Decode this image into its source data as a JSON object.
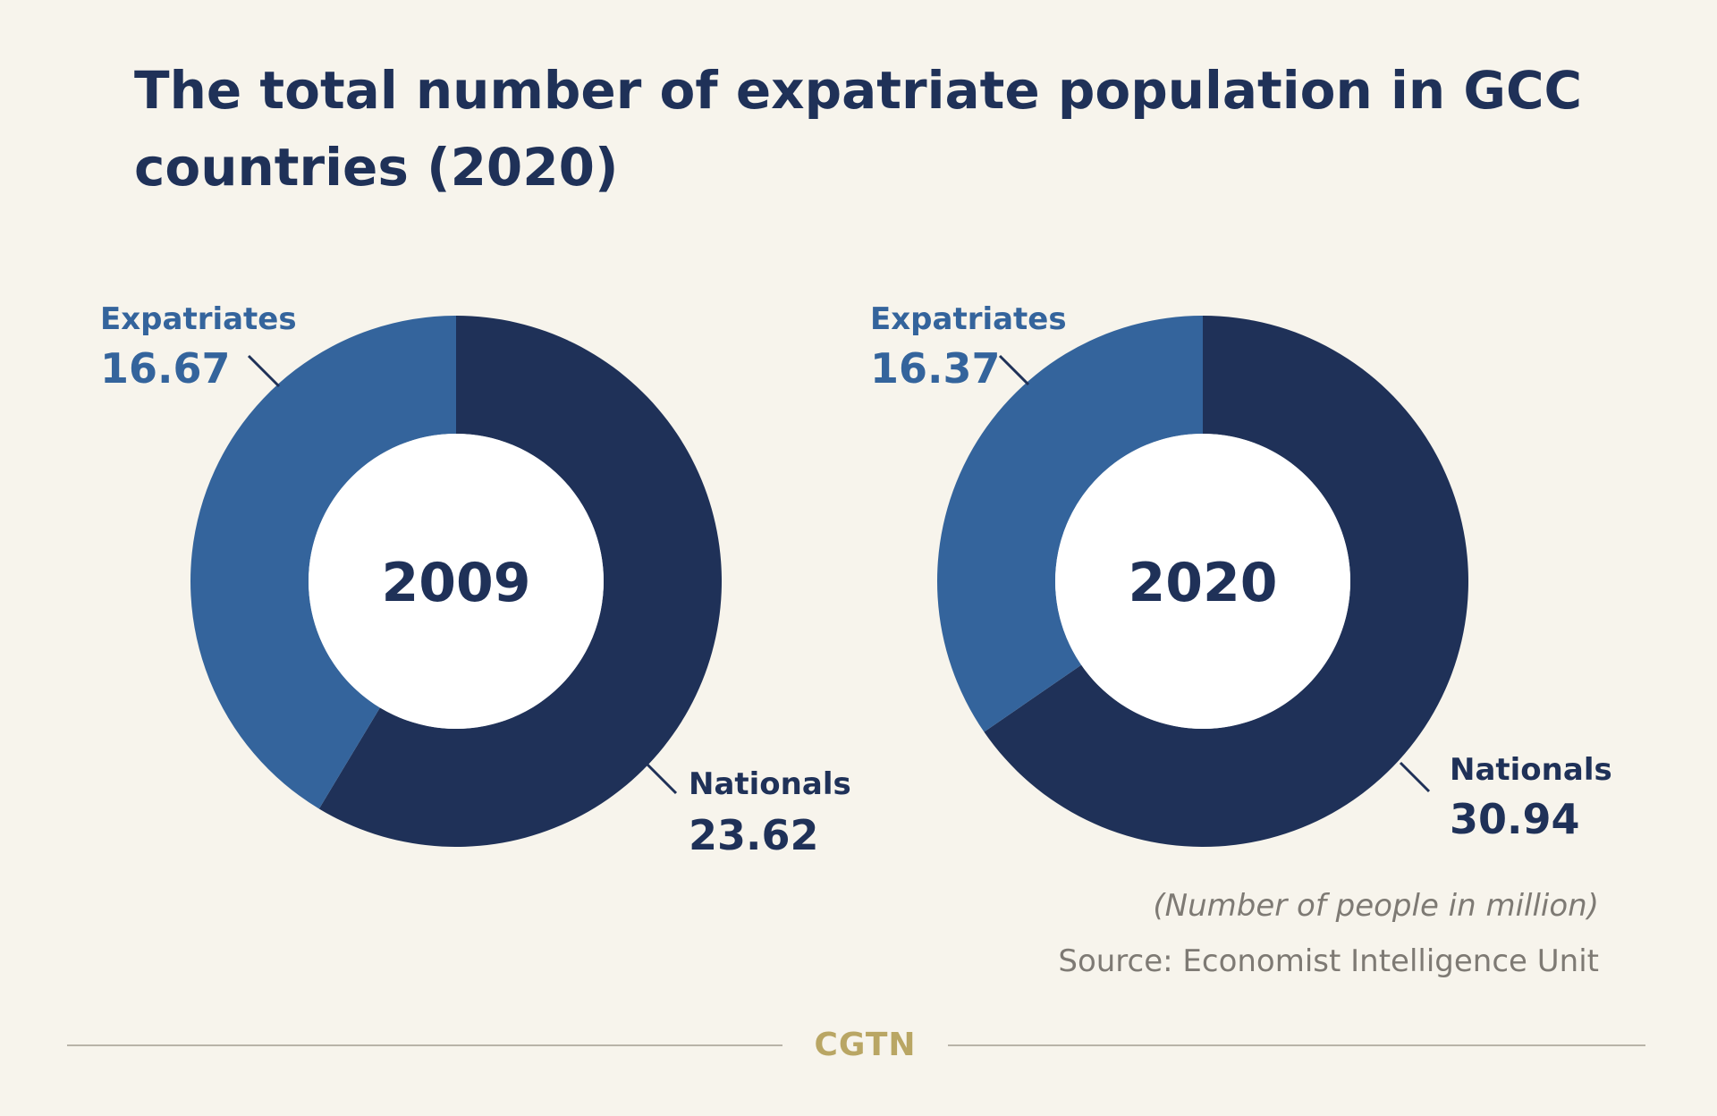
{
  "title": "The total number of expatriate population in GCC countries (2020)",
  "note": "(Number of people in million)",
  "source": "Source: Economist Intelligence Unit",
  "logo_text": "CGTN",
  "colors": {
    "expatriates": "#34649c",
    "nationals": "#1f3158",
    "background": "#f7f4ec",
    "hole": "#ffffff"
  },
  "chart_data": [
    {
      "type": "pie",
      "style": "donut",
      "center_label": "2009",
      "slices": [
        {
          "label": "Nationals",
          "value": 23.62,
          "value_label": "23.62"
        },
        {
          "label": "Expatriates",
          "value": 16.67,
          "value_label": "16.67"
        }
      ]
    },
    {
      "type": "pie",
      "style": "donut",
      "center_label": "2020",
      "slices": [
        {
          "label": "Nationals",
          "value": 30.94,
          "value_label": "30.94"
        },
        {
          "label": "Expatriates",
          "value": 16.37,
          "value_label": "16.37"
        }
      ]
    }
  ]
}
